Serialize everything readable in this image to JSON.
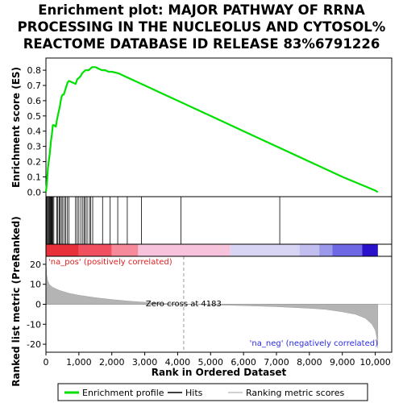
{
  "chart_data": {
    "type": "line",
    "title_lines": [
      "Enrichment plot: MAJOR PATHWAY OF RRNA",
      "PROCESSING IN THE NUCLEOLUS AND CYTOSOL%",
      "REACTOME DATABASE ID RELEASE 83%6791226"
    ],
    "top_panel": {
      "ylabel": "Enrichment score (ES)",
      "ylim": [
        -0.03,
        0.88
      ],
      "yticks": [
        0.0,
        0.1,
        0.2,
        0.3,
        0.4,
        0.5,
        0.6,
        0.7,
        0.8
      ],
      "ytick_labels": [
        "0.0",
        "0.1",
        "0.2",
        "0.3",
        "0.4",
        "0.5",
        "0.6",
        "0.7",
        "0.8"
      ],
      "series": [
        {
          "name": "Enrichment profile",
          "color": "#00e000",
          "x": [
            0,
            30,
            60,
            90,
            120,
            150,
            180,
            210,
            240,
            300,
            330,
            360,
            390,
            420,
            450,
            480,
            510,
            540,
            570,
            600,
            630,
            660,
            700,
            800,
            900,
            950,
            1000,
            1050,
            1100,
            1150,
            1200,
            1250,
            1300,
            1350,
            1400,
            1450,
            1500,
            1600,
            1700,
            1800,
            1900,
            2000,
            2200,
            2400,
            2600,
            2800,
            2900,
            3000,
            3500,
            4000,
            4100,
            5000,
            6000,
            7000,
            7100,
            8000,
            9000,
            10000,
            10080
          ],
          "y": [
            0.0,
            0.06,
            0.16,
            0.21,
            0.26,
            0.33,
            0.38,
            0.44,
            0.44,
            0.43,
            0.47,
            0.5,
            0.53,
            0.56,
            0.6,
            0.63,
            0.64,
            0.64,
            0.66,
            0.68,
            0.7,
            0.72,
            0.73,
            0.72,
            0.71,
            0.74,
            0.75,
            0.76,
            0.78,
            0.79,
            0.8,
            0.8,
            0.8,
            0.81,
            0.82,
            0.82,
            0.82,
            0.81,
            0.8,
            0.8,
            0.79,
            0.79,
            0.78,
            0.76,
            0.74,
            0.72,
            0.71,
            0.7,
            0.65,
            0.6,
            0.59,
            0.5,
            0.4,
            0.3,
            0.29,
            0.2,
            0.1,
            0.01,
            0.0
          ]
        }
      ]
    },
    "hits_positions": [
      20,
      45,
      70,
      95,
      110,
      130,
      150,
      170,
      190,
      210,
      240,
      330,
      360,
      400,
      430,
      470,
      510,
      560,
      600,
      650,
      700,
      900,
      950,
      1000,
      1060,
      1120,
      1160,
      1200,
      1250,
      1320,
      1360,
      1420,
      1720,
      1950,
      2180,
      2470,
      2900,
      4100,
      7100
    ],
    "rank_colorbar": {
      "segments": [
        {
          "from": 0,
          "to": 1000,
          "color": "#e8303a"
        },
        {
          "from": 1000,
          "to": 2000,
          "color": "#f05060"
        },
        {
          "from": 2000,
          "to": 2800,
          "color": "#f68a9a"
        },
        {
          "from": 2800,
          "to": 5600,
          "color": "#f7c3dc"
        },
        {
          "from": 5600,
          "to": 7700,
          "color": "#d8d4f4"
        },
        {
          "from": 7700,
          "to": 8300,
          "color": "#c2bff0"
        },
        {
          "from": 8300,
          "to": 8700,
          "color": "#9c98ea"
        },
        {
          "from": 8700,
          "to": 9600,
          "color": "#6f68e4"
        },
        {
          "from": 9600,
          "to": 10080,
          "color": "#2a12cc"
        }
      ]
    },
    "bottom_panel": {
      "ylabel": "Ranked list metric (PreRanked)",
      "ylim": [
        -24,
        24
      ],
      "yticks": [
        20,
        10,
        0,
        -10,
        -20
      ],
      "ytick_labels": [
        "20",
        "10",
        "0",
        "-10",
        "-20"
      ],
      "x": [
        0,
        20,
        50,
        100,
        200,
        400,
        700,
        1000,
        1500,
        2000,
        2500,
        3000,
        3500,
        4183,
        5000,
        6000,
        7000,
        8000,
        8500,
        9000,
        9400,
        9700,
        9900,
        10000,
        10050,
        10080
      ],
      "y": [
        24,
        15,
        12,
        10,
        8.5,
        7,
        5.5,
        4.5,
        3.3,
        2.4,
        1.6,
        1.0,
        0.5,
        0.0,
        -0.3,
        -0.7,
        -1.2,
        -2.0,
        -2.6,
        -3.8,
        -5.0,
        -7.0,
        -10.0,
        -13.0,
        -17.0,
        -22.0
      ],
      "zero_cross_label": "Zero cross at 4183",
      "zero_cross": 4183,
      "pos_label": "'na_pos' (positively correlated)",
      "neg_label": "'na_neg' (negatively correlated)"
    },
    "xlabel": "Rank in Ordered Dataset",
    "xlim": [
      0,
      10500
    ],
    "xticks": [
      0,
      1000,
      2000,
      3000,
      4000,
      5000,
      6000,
      7000,
      8000,
      9000,
      10000
    ],
    "xtick_labels": [
      "0",
      "1,000",
      "2,000",
      "3,000",
      "4,000",
      "5,000",
      "6,000",
      "7,000",
      "8,000",
      "9,000",
      "10,000"
    ],
    "legend": [
      {
        "label": "Enrichment profile",
        "color": "#00e000",
        "kind": "line"
      },
      {
        "label": "Hits",
        "color": "#000000",
        "kind": "line"
      },
      {
        "label": "Ranking metric scores",
        "color": "#c0c0c0",
        "kind": "line"
      }
    ]
  }
}
